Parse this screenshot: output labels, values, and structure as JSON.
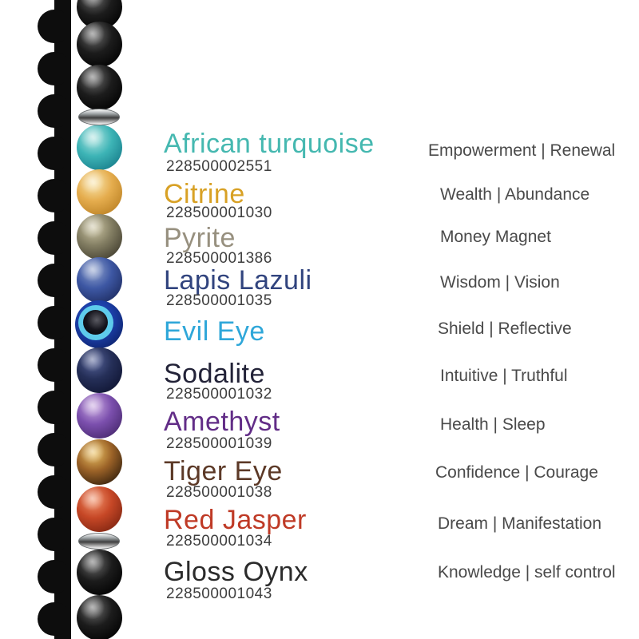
{
  "product": {
    "stones": [
      {
        "name": "African turquoise",
        "sku": "228500002551",
        "meaning": "Empowerment | Renewal",
        "color": "#45b8b0"
      },
      {
        "name": "Citrine",
        "sku": "228500001030",
        "meaning": "Wealth | Abundance",
        "color": "#d8a125"
      },
      {
        "name": "Pyrite",
        "sku": "228500001386",
        "meaning": "Money Magnet",
        "color": "#97907f"
      },
      {
        "name": "Lapis Lazuli",
        "sku": "228500001035",
        "meaning": "Wisdom | Vision",
        "color": "#31447e"
      },
      {
        "name": "Evil Eye",
        "sku": "",
        "meaning": "Shield | Reflective",
        "color": "#2fa7d9"
      },
      {
        "name": "Sodalite",
        "sku": "228500001032",
        "meaning": "Intuitive | Truthful",
        "color": "#232338"
      },
      {
        "name": "Amethyst",
        "sku": "228500001039",
        "meaning": "Health | Sleep",
        "color": "#622d87"
      },
      {
        "name": "Tiger Eye",
        "sku": "228500001038",
        "meaning": "Confidence | Courage",
        "color": "#5c3927"
      },
      {
        "name": "Red Jasper",
        "sku": "228500001034",
        "meaning": "Dream | Manifestation",
        "color": "#bf3a26"
      },
      {
        "name": "Gloss Oynx",
        "sku": "228500001043",
        "meaning": "Knowledge | self control",
        "color": "#2b2b2b"
      }
    ]
  },
  "strand": {
    "bead_sequence": [
      "black-onyx",
      "black-onyx",
      "black-onyx",
      "spacer",
      "african-turquoise",
      "citrine",
      "pyrite",
      "lapis-lazuli",
      "evil-eye",
      "sodalite",
      "amethyst",
      "tiger-eye",
      "red-jasper",
      "spacer",
      "black-onyx",
      "black-onyx"
    ],
    "palette": {
      "black-onyx": {
        "hi": "#6e6e6e",
        "mid": "#1c1c1c",
        "lo": "#000000"
      },
      "african-turquoise": {
        "hi": "#b2e6e2",
        "mid": "#3db4b6",
        "lo": "#157a88"
      },
      "citrine": {
        "hi": "#f9e7b0",
        "mid": "#e5ad4e",
        "lo": "#b97f22"
      },
      "pyrite": {
        "hi": "#cfc8a6",
        "mid": "#837e63",
        "lo": "#3f3b2c"
      },
      "lapis-lazuli": {
        "hi": "#93a5cf",
        "mid": "#3d57a3",
        "lo": "#1c2a5e"
      },
      "evil-eye": {
        "outer_hi": "#2a52c4",
        "outer": "#1b3da5",
        "outer_lo": "#0a1e63",
        "ring": "#5ecbeb",
        "pupil_hi": "#5a5a62",
        "pupil": "#15151d",
        "pupil_lo": "#05050a"
      },
      "sodalite": {
        "hi": "#56639a",
        "mid": "#252f58",
        "lo": "#0e1330"
      },
      "amethyst": {
        "hi": "#cbaae2",
        "mid": "#7b4fad",
        "lo": "#45266b"
      },
      "tiger-eye": {
        "hi": "#edc566",
        "mid": "#9c6328",
        "lo": "#2f1d0b"
      },
      "red-jasper": {
        "hi": "#f2926a",
        "mid": "#c64726",
        "lo": "#7c2310"
      },
      "spacer": {
        "hi": "#ffffff",
        "mid": "#9aa0a2",
        "lo": "#3f3f3f"
      }
    },
    "shadow_color": "#0d0d0d"
  }
}
